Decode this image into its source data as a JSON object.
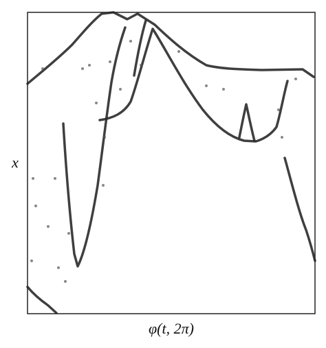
{
  "chart_data": {
    "type": "line",
    "xlabel": "φ(t, 2π)",
    "ylabel": "x"
  }
}
